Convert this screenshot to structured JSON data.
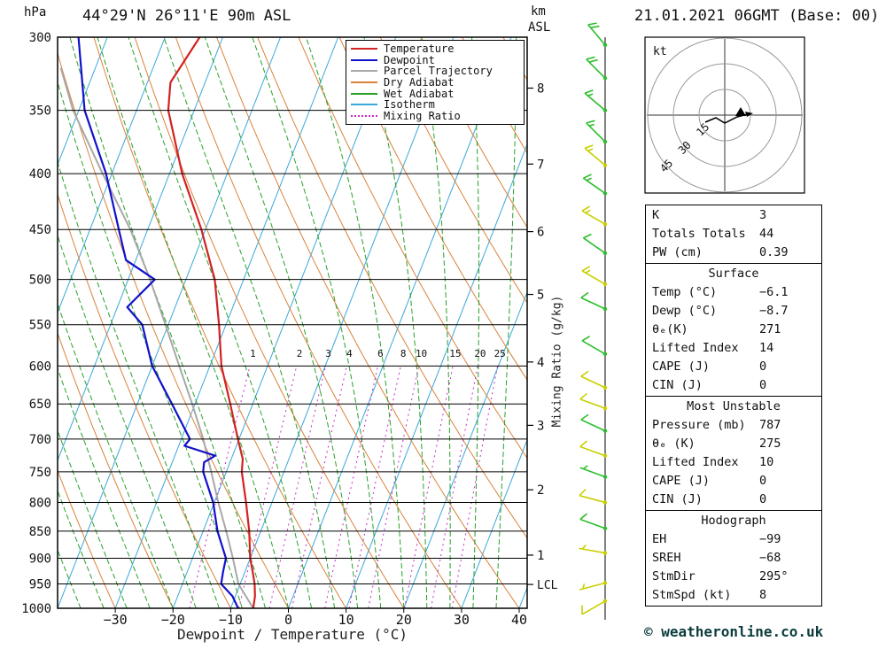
{
  "header": {
    "station": "44°29'N 26°11'E 90m ASL",
    "datetime": "21.01.2021 06GMT (Base: 00)",
    "pressure_unit": "hPa",
    "height_unit_km": "km",
    "height_unit_asl": "ASL"
  },
  "axes": {
    "pressure_ticks_hpa": [
      300,
      350,
      400,
      450,
      500,
      550,
      600,
      650,
      700,
      750,
      800,
      850,
      900,
      950,
      1000
    ],
    "temp_ticks_c": [
      -30,
      -20,
      -10,
      0,
      10,
      20,
      30,
      40
    ],
    "xlabel": "Dewpoint / Temperature (°C)",
    "mixing_ratio_label": "Mixing Ratio (g/kg)",
    "km_ticks": [
      {
        "label": "8",
        "pressure_hpa": 334
      },
      {
        "label": "7",
        "pressure_hpa": 392
      },
      {
        "label": "6",
        "pressure_hpa": 452
      },
      {
        "label": "5",
        "pressure_hpa": 516
      },
      {
        "label": "4",
        "pressure_hpa": 595
      },
      {
        "label": "3",
        "pressure_hpa": 680
      },
      {
        "label": "2",
        "pressure_hpa": 779
      },
      {
        "label": "1",
        "pressure_hpa": 894
      },
      {
        "label": "LCL",
        "pressure_hpa": 951
      }
    ]
  },
  "legend": [
    {
      "label": "Temperature",
      "color": "#d22222",
      "dash": "solid"
    },
    {
      "label": "Dewpoint",
      "color": "#1111cc",
      "dash": "solid"
    },
    {
      "label": "Parcel Trajectory",
      "color": "#a8a8a8",
      "dash": "solid"
    },
    {
      "label": "Dry Adiabat",
      "color": "#d9823b",
      "dash": "solid"
    },
    {
      "label": "Wet Adiabat",
      "color": "#28a028",
      "dash": "solid"
    },
    {
      "label": "Isotherm",
      "color": "#3aa8d8",
      "dash": "solid"
    },
    {
      "label": "Mixing Ratio",
      "color": "#c828c8",
      "dash": "dotted"
    }
  ],
  "colors": {
    "temperature": "#d22222",
    "dewpoint": "#1111cc",
    "parcel": "#a8a8a8",
    "dry_adiabat": "#d9823b",
    "wet_adiabat": "#28a028",
    "isotherm": "#3aa8d8",
    "mixing_ratio": "#c828c8",
    "barb_green": "#2dbe2d",
    "barb_yellow": "#c9cf00",
    "grid_black": "#000000"
  },
  "chart_data": {
    "type": "line",
    "subtype": "skewt_logp_sounding",
    "title": "44°29'N 26°11'E 90m ASL",
    "subtitle": "21.01.2021 06GMT (Base: 00)",
    "xlabel": "Dewpoint / Temperature (°C)",
    "ylabel": "hPa",
    "pressure_axis_hpa": {
      "min": 300,
      "max": 1000,
      "scale": "log"
    },
    "temp_axis_c": {
      "min": -40,
      "max": 40,
      "skew": true
    },
    "series": [
      {
        "name": "Temperature",
        "pressure_hpa": [
          1000,
          975,
          950,
          925,
          900,
          850,
          800,
          750,
          730,
          700,
          650,
          600,
          550,
          500,
          450,
          400,
          350,
          330,
          300
        ],
        "values_c": [
          -6.1,
          -6.6,
          -7.5,
          -8.7,
          -10,
          -12,
          -14.5,
          -17.3,
          -18,
          -20.2,
          -23.9,
          -28,
          -31.2,
          -35,
          -40.7,
          -47.8,
          -54.5,
          -56,
          -54
        ]
      },
      {
        "name": "Dewpoint",
        "pressure_hpa": [
          1000,
          975,
          950,
          925,
          900,
          850,
          800,
          750,
          735,
          725,
          710,
          700,
          650,
          600,
          550,
          530,
          500,
          480,
          450,
          400,
          350,
          300
        ],
        "values_c": [
          -8.7,
          -10.5,
          -13.3,
          -13.8,
          -14.2,
          -17.5,
          -20.2,
          -24,
          -24.5,
          -23,
          -29,
          -28.5,
          -34,
          -40,
          -44.5,
          -48.3,
          -45.4,
          -51.7,
          -55,
          -61,
          -69,
          -75
        ]
      },
      {
        "name": "Parcel Trajectory",
        "pressure_hpa": [
          1000,
          950,
          900,
          850,
          800,
          750,
          700,
          650,
          600,
          550,
          500,
          450,
          400,
          350,
          320
        ],
        "values_c": [
          -6.1,
          -10.3,
          -13,
          -16,
          -19.3,
          -22.6,
          -26.2,
          -30.5,
          -35.3,
          -40.5,
          -46.2,
          -53,
          -61.6,
          -71,
          -76
        ]
      }
    ],
    "mixing_ratio_lines_gkg": [
      1,
      2,
      3,
      4,
      6,
      8,
      10,
      15,
      20,
      25
    ],
    "grid": {
      "isotherm_step_c": 10,
      "dry_adiabat_step_c": 10,
      "wet_adiabat_step_c": 4
    },
    "wind_barbs": [
      {
        "p": 305,
        "spd": 20,
        "dir": 320,
        "color": "green"
      },
      {
        "p": 327,
        "spd": 20,
        "dir": 315,
        "color": "green"
      },
      {
        "p": 350,
        "spd": 15,
        "dir": 310,
        "color": "green"
      },
      {
        "p": 374,
        "spd": 15,
        "dir": 315,
        "color": "green"
      },
      {
        "p": 393,
        "spd": 15,
        "dir": 310,
        "color": "yellow"
      },
      {
        "p": 417,
        "spd": 15,
        "dir": 305,
        "color": "green"
      },
      {
        "p": 445,
        "spd": 15,
        "dir": 300,
        "color": "yellow"
      },
      {
        "p": 473,
        "spd": 10,
        "dir": 305,
        "color": "green"
      },
      {
        "p": 505,
        "spd": 15,
        "dir": 300,
        "color": "yellow"
      },
      {
        "p": 532,
        "spd": 10,
        "dir": 295,
        "color": "green"
      },
      {
        "p": 585,
        "spd": 10,
        "dir": 300,
        "color": "green"
      },
      {
        "p": 628,
        "spd": 10,
        "dir": 295,
        "color": "yellow"
      },
      {
        "p": 656,
        "spd": 10,
        "dir": 290,
        "color": "yellow"
      },
      {
        "p": 688,
        "spd": 10,
        "dir": 295,
        "color": "green"
      },
      {
        "p": 725,
        "spd": 10,
        "dir": 290,
        "color": "yellow"
      },
      {
        "p": 758,
        "spd": 5,
        "dir": 290,
        "color": "green"
      },
      {
        "p": 800,
        "spd": 10,
        "dir": 285,
        "color": "yellow"
      },
      {
        "p": 845,
        "spd": 10,
        "dir": 290,
        "color": "green"
      },
      {
        "p": 890,
        "spd": 5,
        "dir": 280,
        "color": "yellow"
      },
      {
        "p": 948,
        "spd": 5,
        "dir": 255,
        "color": "yellow"
      },
      {
        "p": 985,
        "spd": 10,
        "dir": 240,
        "color": "yellow"
      }
    ]
  },
  "hodograph": {
    "unit_label": "kt",
    "rings_kt": [
      15,
      30,
      45
    ],
    "storm_dir_deg": 295,
    "storm_speed_kt": 8
  },
  "table": {
    "sections": [
      {
        "header": null,
        "rows": [
          [
            "K",
            "3"
          ],
          [
            "Totals Totals",
            "44"
          ],
          [
            "PW (cm)",
            "0.39"
          ]
        ]
      },
      {
        "header": "Surface",
        "rows": [
          [
            "Temp (°C)",
            "−6.1"
          ],
          [
            "Dewp (°C)",
            "−8.7"
          ],
          [
            "θₑ(K)",
            "271"
          ],
          [
            "Lifted Index",
            "14"
          ],
          [
            "CAPE (J)",
            "0"
          ],
          [
            "CIN (J)",
            "0"
          ]
        ]
      },
      {
        "header": "Most Unstable",
        "rows": [
          [
            "Pressure (mb)",
            "787"
          ],
          [
            "θₑ (K)",
            "275"
          ],
          [
            "Lifted Index",
            "10"
          ],
          [
            "CAPE (J)",
            "0"
          ],
          [
            "CIN (J)",
            "0"
          ]
        ]
      },
      {
        "header": "Hodograph",
        "rows": [
          [
            "EH",
            "−99"
          ],
          [
            "SREH",
            "−68"
          ],
          [
            "StmDir",
            "295°"
          ],
          [
            "StmSpd (kt)",
            "8"
          ]
        ]
      }
    ]
  },
  "footer": {
    "copyright": "© weatheronline.co.uk"
  }
}
